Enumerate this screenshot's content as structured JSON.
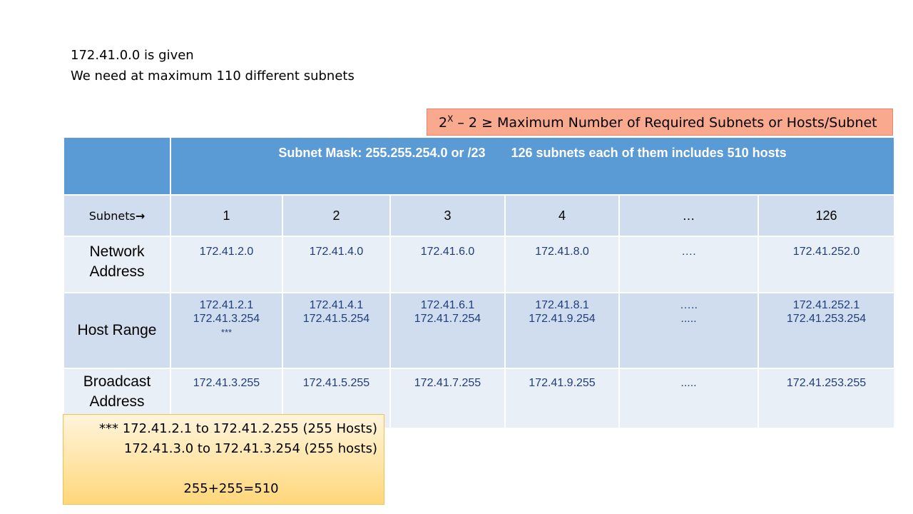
{
  "intro": {
    "line1": "172.41.0.0 is given",
    "line2": "We need at maximum 110 different subnets"
  },
  "formula": {
    "base": "2",
    "exponent": "X",
    "rest": " – 2 ≥ Maximum Number of Required Subnets or Hosts/Subnet"
  },
  "table": {
    "header_mask": "Subnet Mask: 255.255.254.0  or /23",
    "header_count": "126 subnets each of them includes 510 hosts",
    "subnets_label": "Subnets",
    "subnets_arrow": "→",
    "columns": [
      "1",
      "2",
      "3",
      "4",
      "…",
      "126"
    ],
    "network": {
      "label_1": "Network",
      "label_2": "Address",
      "values": [
        "172.41.2.0",
        "172.41.4.0",
        "172.41.6.0",
        "172.41.8.0",
        "….",
        "172.41.252.0"
      ]
    },
    "host": {
      "label": "Host Range",
      "start": [
        "172.41.2.1",
        "172.41.4.1",
        "172.41.6.1",
        "172.41.8.1",
        "…..",
        "172.41.252.1"
      ],
      "end": [
        "172.41.3.254",
        "172.41.5.254",
        "172.41.7.254",
        "172.41.9.254",
        ".....",
        "172.41.253.254"
      ],
      "footnote_mark": "***"
    },
    "broadcast": {
      "label_1": "Broadcast",
      "label_2": "Address",
      "values": [
        "172.41.3.255",
        "172.41.5.255",
        "172.41.7.255",
        "172.41.9.255",
        ".....",
        "172.41.253.255"
      ]
    }
  },
  "note": {
    "line1": "*** 172.41.2.1 to 172.41.2.255 (255 Hosts)",
    "line2": "172.41.3.0 to 172.41.3.254  (255 hosts)",
    "total": "255+255=510"
  },
  "colors": {
    "header_blue": "#5b9bd5",
    "row_light": "#e9eff7",
    "row_mid": "#d0ddef",
    "formula_bg": "#f8a98e",
    "note_bg": "#ffd77a"
  }
}
